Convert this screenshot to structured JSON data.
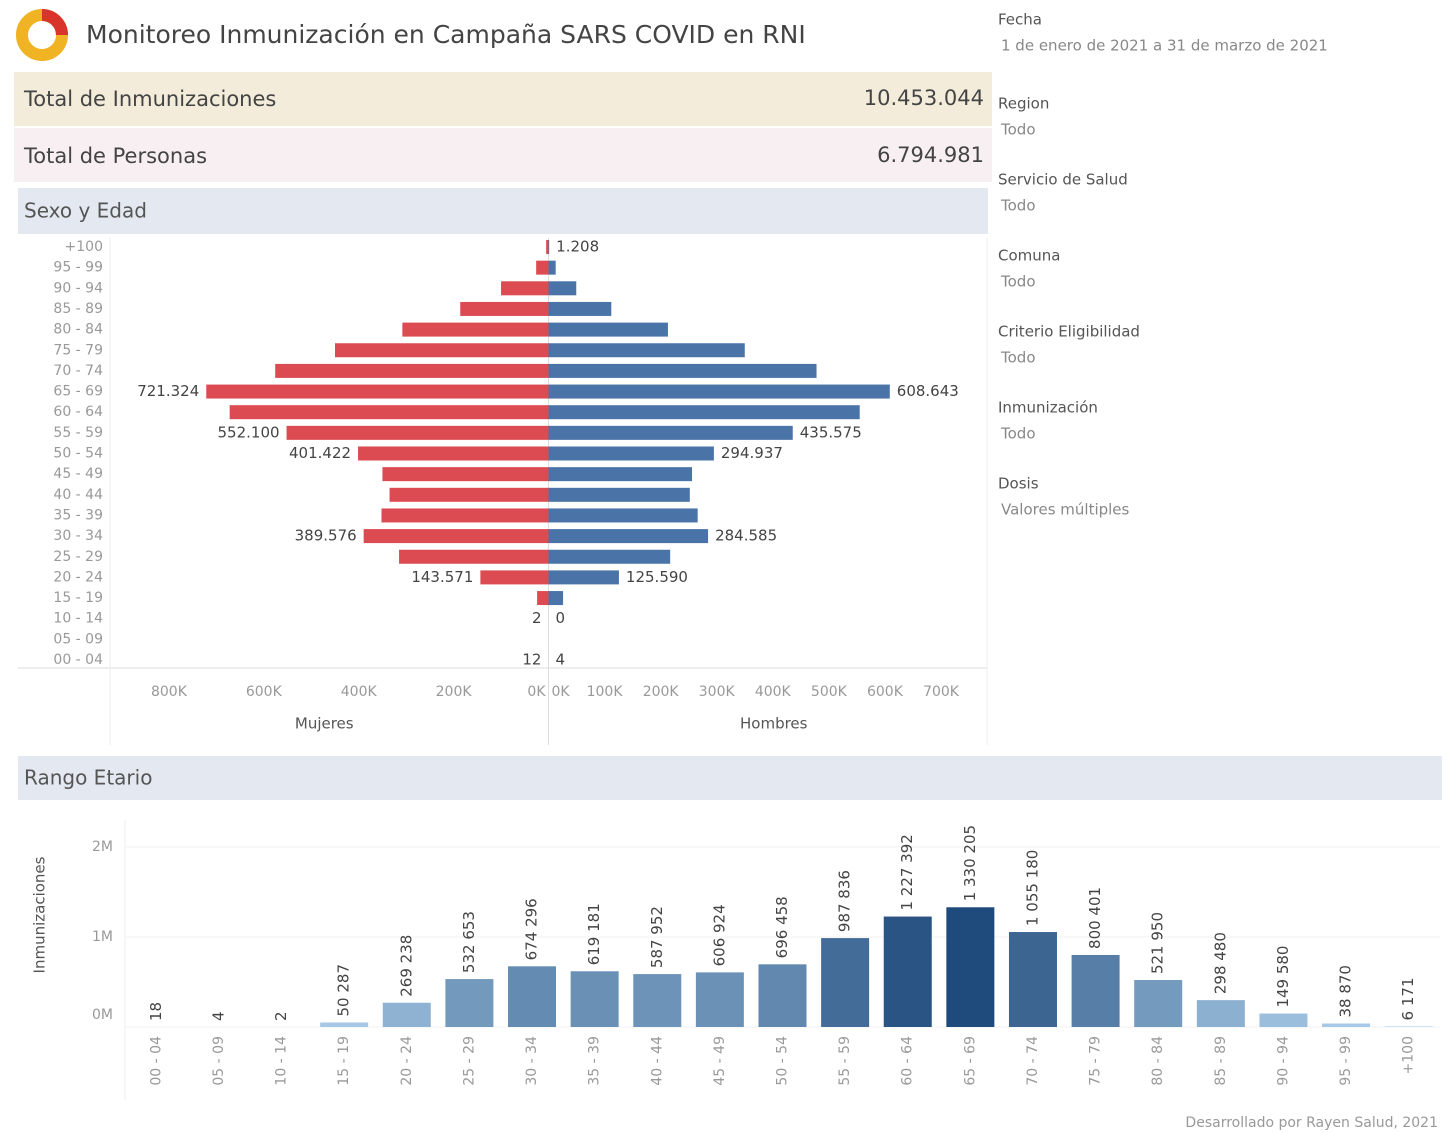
{
  "header": {
    "title": "Monitoreo Inmunización en Campaña SARS COVID en RNI"
  },
  "kpis": [
    {
      "label": "Total de Inmunizaciones",
      "value": "10.453.044"
    },
    {
      "label": "Total de Personas",
      "value": "6.794.981"
    }
  ],
  "filters": [
    {
      "label": "Fecha",
      "value": "1 de enero de 2021 a 31 de marzo de 2021"
    },
    {
      "label": "Region",
      "value": "Todo"
    },
    {
      "label": "Servicio de Salud",
      "value": "Todo"
    },
    {
      "label": "Comuna",
      "value": "Todo"
    },
    {
      "label": "Criterio Eligibilidad",
      "value": "Todo"
    },
    {
      "label": "Inmunización",
      "value": "Todo"
    },
    {
      "label": "Dosis",
      "value": "Valores múltiples"
    }
  ],
  "chart_data": [
    {
      "type": "pyramid",
      "title": "Sexo y Edad",
      "categories": [
        "+100",
        "95 - 99",
        "90 - 94",
        "85 - 89",
        "80 - 84",
        "75 - 79",
        "70 - 74",
        "65 - 69",
        "60 - 64",
        "55 - 59",
        "50 - 54",
        "45 - 49",
        "40 - 44",
        "35 - 39",
        "30 - 34",
        "25 - 29",
        "20 - 24",
        "15 - 19",
        "10 - 14",
        "05 - 09",
        "00 - 04"
      ],
      "series": [
        {
          "name": "Mujeres",
          "color": "#dc4b52",
          "values": [
            4963,
            26000,
            100000,
            186000,
            308000,
            450000,
            576000,
            721324,
            672000,
            552100,
            401422,
            350000,
            335000,
            352000,
            389576,
            315000,
            143571,
            24000,
            2,
            3,
            12
          ],
          "value_labels": [
            null,
            null,
            null,
            null,
            null,
            null,
            null,
            "721.324",
            null,
            "552.100",
            "401.422",
            null,
            null,
            null,
            "389.576",
            null,
            "143.571",
            null,
            "2",
            null,
            "12"
          ],
          "xlim": [
            0,
            920000
          ],
          "xticks": [
            {
              "value": 0,
              "label": "0K"
            },
            {
              "value": 200000,
              "label": "200K"
            },
            {
              "value": 400000,
              "label": "400K"
            },
            {
              "value": 600000,
              "label": "600K"
            },
            {
              "value": 800000,
              "label": "800K"
            }
          ]
        },
        {
          "name": "Hombres",
          "color": "#4a73a8",
          "values": [
            1208,
            12800,
            49500,
            112000,
            213000,
            350000,
            478000,
            608643,
            555000,
            435575,
            294937,
            256000,
            252000,
            266000,
            284585,
            217000,
            125590,
            26000,
            0,
            1,
            4
          ],
          "value_labels": [
            "1.208",
            null,
            null,
            null,
            null,
            null,
            null,
            "608.643",
            null,
            "435.575",
            "294.937",
            null,
            null,
            null,
            "284.585",
            null,
            "125.590",
            null,
            "0",
            null,
            "4"
          ],
          "xlim": [
            0,
            782000
          ],
          "xticks": [
            {
              "value": 0,
              "label": "0K"
            },
            {
              "value": 100000,
              "label": "100K"
            },
            {
              "value": 200000,
              "label": "200K"
            },
            {
              "value": 300000,
              "label": "300K"
            },
            {
              "value": 400000,
              "label": "400K"
            },
            {
              "value": 500000,
              "label": "500K"
            },
            {
              "value": 600000,
              "label": "600K"
            },
            {
              "value": 700000,
              "label": "700K"
            }
          ]
        }
      ]
    },
    {
      "type": "bar",
      "title": "Rango Etario",
      "ylabel": "Inmunizaciones",
      "categories": [
        "00 - 04",
        "05 - 09",
        "10 - 14",
        "15 - 19",
        "20 - 24",
        "25 - 29",
        "30 - 34",
        "35 - 39",
        "40 - 44",
        "45 - 49",
        "50 - 54",
        "55 - 59",
        "60 - 64",
        "65 - 69",
        "70 - 74",
        "75 - 79",
        "80 - 84",
        "85 - 89",
        "90 - 94",
        "95 - 99",
        "+100"
      ],
      "values": [
        18,
        4,
        2,
        50287,
        269238,
        532653,
        674296,
        619181,
        587952,
        606924,
        696458,
        987836,
        1227392,
        1330205,
        1055180,
        800401,
        521950,
        298480,
        149580,
        38870,
        6171
      ],
      "value_labels": [
        "18",
        "4",
        "2",
        "50 287",
        "269 238",
        "532 653",
        "674 296",
        "619 181",
        "587 952",
        "606 924",
        "696 458",
        "987 836",
        "1 227 392",
        "1 330 205",
        "1 055 180",
        "800 401",
        "521 950",
        "298 480",
        "149 580",
        "38 870",
        "6 171"
      ],
      "ylim": [
        0,
        2300000
      ],
      "yticks": [
        {
          "value": 0,
          "label": "0M"
        },
        {
          "value": 1000000,
          "label": "1M"
        },
        {
          "value": 2000000,
          "label": "2M"
        }
      ],
      "color_scale": [
        "#abcde8",
        "#1f4a7c"
      ]
    }
  ],
  "footer": "Desarrollado por Rayen Salud, 2021"
}
